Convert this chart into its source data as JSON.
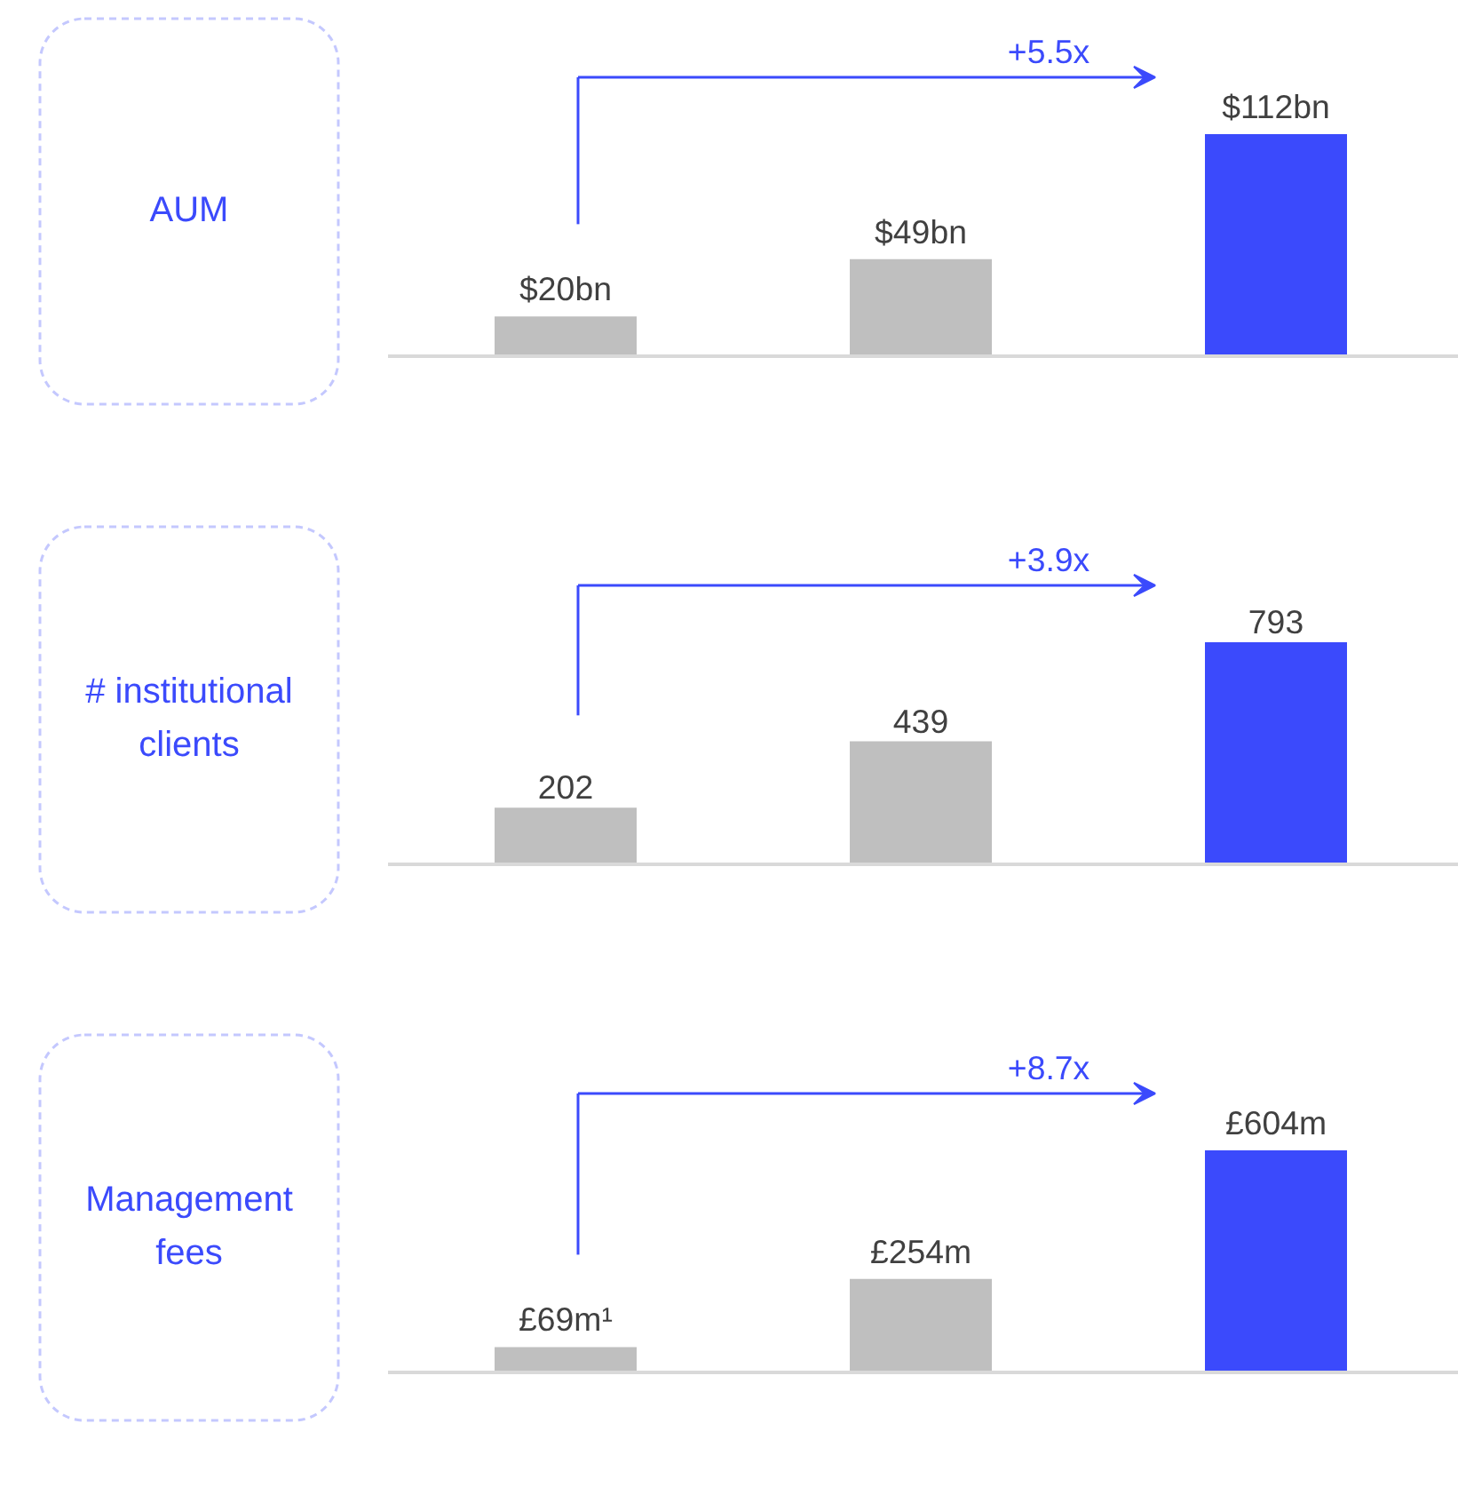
{
  "chart_data": [
    {
      "type": "bar",
      "title": "AUM",
      "categories": [
        null,
        null,
        null
      ],
      "values": [
        20,
        49,
        112
      ],
      "colors": [
        "#bfbfbf",
        "#bfbfbf",
        "#3b4afc"
      ],
      "value_labels": [
        "$20bn",
        "$49bn",
        "$112bn"
      ],
      "annotations": [
        "+5.5x"
      ]
    },
    {
      "type": "bar",
      "title": "# institutional clients",
      "categories": [
        null,
        null,
        null
      ],
      "values": [
        202,
        439,
        793
      ],
      "colors": [
        "#bfbfbf",
        "#bfbfbf",
        "#3b4afc"
      ],
      "value_labels": [
        "202",
        "439",
        "793"
      ],
      "annotations": [
        "+3.9x"
      ]
    },
    {
      "type": "bar",
      "title": "Management fees",
      "categories": [
        null,
        null,
        null
      ],
      "values": [
        69,
        254,
        604
      ],
      "colors": [
        "#bfbfbf",
        "#bfbfbf",
        "#3b4afc"
      ],
      "value_labels": [
        "£69m¹",
        "£254m",
        "£604m"
      ],
      "annotations": [
        "+8.7x"
      ]
    }
  ]
}
